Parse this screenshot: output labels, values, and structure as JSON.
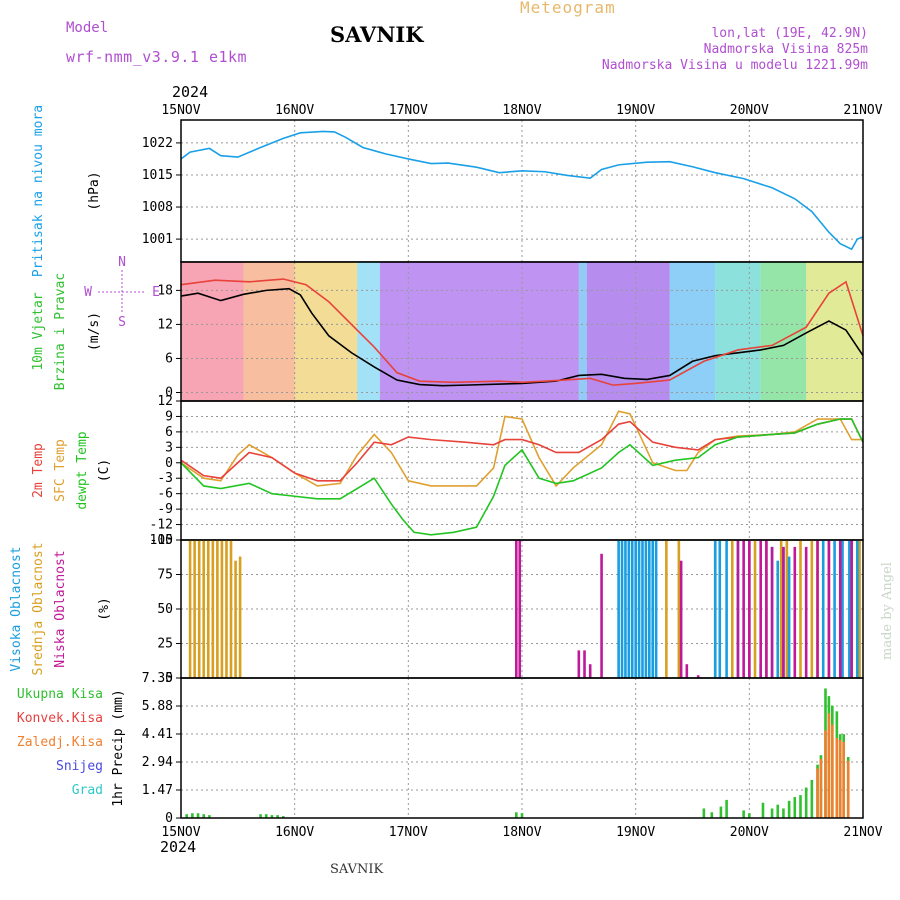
{
  "header": {
    "station": "SAVNIK",
    "subtitle": "Meteogram",
    "model_label": "Model",
    "model_name": "wrf-nmm_v3.9.1 e1km",
    "location": "lon,lat (19E, 42.9N)",
    "elevation": "Nadmorska Visina 825m",
    "model_elevation": "Nadmorska Visina u modelu 1221.99m",
    "year_top": "2024",
    "year_bottom": "2024"
  },
  "footer": "SAVNIK",
  "credit": "made by Angel",
  "colors": {
    "pressure": "#1aa0e8",
    "temp2m": "#e8423a",
    "sfc_temp": "#e0a030",
    "dewpt": "#22c422",
    "low_cloud": "#c0189a",
    "mid_cloud": "#d8a020",
    "high_cloud": "#1a9ee0",
    "total_precip": "#30c030",
    "conv_precip": "#e84040",
    "frozen": "#f08030",
    "snow": "#4a4ae0",
    "grad": "#30c8c8",
    "purple": "#b04fd0"
  },
  "chart_data": [
    {
      "type": "line",
      "panel": "pressure",
      "ylabel_lines": [
        "Pritisak na nivou mora",
        "(hPa)"
      ],
      "x_categories": [
        "15NOV",
        "16NOV",
        "17NOV",
        "18NOV",
        "19NOV",
        "20NOV",
        "21NOV"
      ],
      "xlim_days": [
        0,
        6
      ],
      "ylim": [
        996,
        1027
      ],
      "yticks": [
        1001,
        1008,
        1015,
        1022
      ],
      "ytick_labels": [
        "1001",
        "1008",
        "1015",
        "1022"
      ],
      "series": [
        {
          "color_key": "pressure",
          "x": [
            0,
            0.08,
            0.25,
            0.35,
            0.5,
            0.7,
            0.9,
            1.05,
            1.25,
            1.35,
            1.45,
            1.6,
            1.8,
            2.0,
            2.2,
            2.35,
            2.6,
            2.8,
            3.0,
            3.2,
            3.4,
            3.6,
            3.7,
            3.85,
            4.1,
            4.3,
            4.5,
            4.7,
            4.95,
            5.2,
            5.4,
            5.55,
            5.7,
            5.8,
            5.9,
            5.95,
            6.0
          ],
          "y": [
            1018.5,
            1020,
            1020.8,
            1019.2,
            1018.9,
            1021,
            1023,
            1024.2,
            1024.5,
            1024.4,
            1023.2,
            1021,
            1019.6,
            1018.5,
            1017.5,
            1017.6,
            1016.7,
            1015.5,
            1015.9,
            1015.7,
            1014.9,
            1014.3,
            1016.2,
            1017.2,
            1017.8,
            1017.9,
            1016.8,
            1015.5,
            1014.2,
            1012.2,
            1009.8,
            1007,
            1002.5,
            1000,
            998.8,
            1001,
            1001.5
          ]
        }
      ]
    },
    {
      "type": "line",
      "panel": "wind",
      "ylabel_lines": [
        "10m Vjetar",
        "Brzina i Pravac",
        "(m/s)"
      ],
      "compass": [
        "N",
        "W",
        "E",
        "S"
      ],
      "xlim_days": [
        0,
        6
      ],
      "ylim": [
        -1.5,
        23
      ],
      "yticks": [
        0,
        6,
        12,
        18
      ],
      "ytick_labels": [
        "0",
        "6",
        "12",
        "18"
      ],
      "series": [
        {
          "color_key": "black",
          "x": [
            0,
            0.15,
            0.35,
            0.55,
            0.75,
            0.95,
            1.05,
            1.15,
            1.3,
            1.5,
            1.7,
            1.9,
            2.1,
            2.3,
            2.5,
            3.0,
            3.3,
            3.5,
            3.7,
            3.9,
            4.1,
            4.3,
            4.5,
            4.7,
            4.9,
            5.1,
            5.3,
            5.5,
            5.7,
            5.85,
            6.0
          ],
          "y": [
            17,
            17.5,
            16.2,
            17.3,
            18,
            18.3,
            17.2,
            14,
            10,
            7,
            4.5,
            2.2,
            1.4,
            1.2,
            1.3,
            1.6,
            2,
            3,
            3.2,
            2.5,
            2.3,
            3,
            5.5,
            6.5,
            7,
            7.5,
            8.3,
            10.5,
            12.6,
            11,
            6.5
          ]
        },
        {
          "color_key": "temp2m",
          "x": [
            0,
            0.3,
            0.6,
            0.9,
            1.1,
            1.3,
            1.5,
            1.7,
            1.9,
            2.1,
            2.4,
            2.8,
            3.0,
            3.3,
            3.6,
            3.8,
            4.0,
            4.3,
            4.6,
            4.9,
            5.2,
            5.5,
            5.7,
            5.85,
            6.0
          ],
          "y": [
            19,
            19.8,
            19.5,
            20,
            19,
            16,
            12,
            8,
            3.5,
            2,
            1.8,
            2,
            1.8,
            2.1,
            2.5,
            1.3,
            1.6,
            2.2,
            5.5,
            7.5,
            8.3,
            11.5,
            17.5,
            19.5,
            10
          ]
        }
      ]
    },
    {
      "type": "line",
      "panel": "temperature",
      "ylabel_lines": [
        "2m Temp",
        "SFC Temp",
        "dewpt Temp",
        "(C)"
      ],
      "xlim_days": [
        0,
        6
      ],
      "ylim": [
        -15,
        12
      ],
      "yticks": [
        -15,
        -12,
        -9,
        -6,
        -3,
        0,
        3,
        6,
        9,
        12
      ],
      "ytick_labels": [
        "-15",
        "-12",
        "-9",
        "-6",
        "-3",
        "0",
        "3",
        "6",
        "9",
        "12"
      ],
      "series": [
        {
          "color_key": "sfc_temp",
          "x": [
            0,
            0.2,
            0.35,
            0.5,
            0.6,
            0.8,
            1.0,
            1.2,
            1.4,
            1.55,
            1.7,
            1.85,
            2.0,
            2.2,
            2.4,
            2.6,
            2.75,
            2.85,
            3.0,
            3.15,
            3.3,
            3.45,
            3.7,
            3.85,
            3.95,
            4.15,
            4.35,
            4.45,
            4.55,
            4.7,
            4.9,
            5.2,
            5.4,
            5.6,
            5.8,
            5.9,
            6.0
          ],
          "y": [
            0,
            -3,
            -3.5,
            1.5,
            3.5,
            1,
            -2,
            -4.5,
            -4,
            1.5,
            5.5,
            2,
            -3.5,
            -4.5,
            -4.5,
            -4.5,
            -1,
            9,
            8.5,
            1,
            -4.5,
            -1,
            3.5,
            10,
            9.5,
            0,
            -1.5,
            -1.5,
            2,
            4.5,
            5.2,
            5.5,
            6,
            8.5,
            8.5,
            4.5,
            4.5
          ]
        },
        {
          "color_key": "temp2m",
          "x": [
            0,
            0.2,
            0.35,
            0.5,
            0.6,
            0.8,
            1.0,
            1.2,
            1.4,
            1.55,
            1.7,
            1.85,
            2.0,
            2.2,
            2.5,
            2.75,
            2.85,
            3.0,
            3.15,
            3.3,
            3.5,
            3.7,
            3.85,
            3.95,
            4.15,
            4.35,
            4.55,
            4.7,
            4.9,
            5.2,
            5.4,
            5.6,
            5.8,
            5.9,
            6.0
          ],
          "y": [
            0.5,
            -2.5,
            -3,
            0,
            2,
            1,
            -2,
            -3.5,
            -3.5,
            0,
            4,
            3.5,
            5,
            4.5,
            4,
            3.5,
            4.5,
            4.5,
            3.5,
            2,
            2,
            4.5,
            7.5,
            8,
            4,
            3,
            2.5,
            4.5,
            5,
            5.5,
            5.8,
            7.5,
            8.5,
            8.5,
            4
          ]
        },
        {
          "color_key": "dewpt",
          "x": [
            0,
            0.2,
            0.35,
            0.6,
            0.8,
            1.0,
            1.2,
            1.4,
            1.55,
            1.7,
            1.85,
            1.95,
            2.05,
            2.2,
            2.4,
            2.6,
            2.75,
            2.85,
            3.0,
            3.15,
            3.3,
            3.45,
            3.7,
            3.85,
            3.95,
            4.15,
            4.35,
            4.55,
            4.7,
            4.9,
            5.2,
            5.4,
            5.6,
            5.8,
            5.9,
            6.0
          ],
          "y": [
            0,
            -4.5,
            -5,
            -4,
            -6,
            -6.5,
            -7,
            -7,
            -5,
            -3,
            -8,
            -11,
            -13.5,
            -14,
            -13.5,
            -12.5,
            -6.5,
            -0.5,
            2.5,
            -3,
            -4,
            -3.5,
            -1,
            2,
            3.5,
            -0.5,
            0.5,
            1,
            3.5,
            5,
            5.5,
            5.8,
            7.5,
            8.5,
            8.5,
            4
          ]
        }
      ]
    },
    {
      "type": "bar",
      "panel": "cloudiness",
      "ylabel_lines": [
        "Visoka Oblacnost",
        "Srednja Oblacnost",
        "Niska Oblacnost",
        "(%)"
      ],
      "xlim_days": [
        0,
        6
      ],
      "ylim": [
        0,
        100
      ],
      "yticks": [
        0,
        25,
        50,
        75,
        100
      ],
      "ytick_labels": [
        "0",
        "25",
        "50",
        "75",
        "100"
      ],
      "series": [
        {
          "color_key": "mid_cloud",
          "x": [
            0.08,
            0.12,
            0.16,
            0.2,
            0.24,
            0.28,
            0.32,
            0.36,
            0.4,
            0.44,
            0.48,
            0.52,
            4.27,
            4.38,
            4.7,
            4.85,
            5.0,
            5.05,
            5.15,
            5.28,
            5.33,
            5.45,
            5.55,
            5.6,
            5.7,
            5.8,
            5.9,
            5.97
          ],
          "values": [
            100,
            100,
            100,
            100,
            100,
            100,
            100,
            100,
            100,
            100,
            85,
            88,
            100,
            100,
            100,
            100,
            100,
            100,
            100,
            100,
            100,
            100,
            100,
            100,
            100,
            100,
            100,
            100
          ]
        },
        {
          "color_key": "high_cloud",
          "x": [
            3.85,
            3.88,
            3.91,
            3.94,
            3.97,
            4.0,
            4.03,
            4.06,
            4.09,
            4.12,
            4.15,
            4.18,
            4.7,
            4.74,
            4.8,
            4.9,
            5.1,
            5.2,
            5.25,
            5.3,
            5.35,
            5.65,
            5.75,
            5.82,
            5.88,
            5.95
          ],
          "values": [
            100,
            100,
            100,
            100,
            100,
            100,
            100,
            100,
            100,
            100,
            100,
            100,
            100,
            100,
            100,
            100,
            10,
            95,
            85,
            95,
            88,
            100,
            100,
            100,
            100,
            100
          ]
        },
        {
          "color_key": "low_cloud",
          "x": [
            2.95,
            2.98,
            3.5,
            3.55,
            3.6,
            3.7,
            4.4,
            4.45,
            4.55,
            4.9,
            4.95,
            5.0,
            5.1,
            5.15,
            5.2,
            5.3,
            5.4,
            5.5,
            5.6,
            5.7,
            5.8,
            5.9
          ],
          "values": [
            100,
            100,
            20,
            20,
            10,
            90,
            85,
            10,
            2,
            100,
            100,
            100,
            100,
            100,
            95,
            95,
            95,
            95,
            100,
            100,
            100,
            100
          ]
        }
      ]
    },
    {
      "type": "bar",
      "panel": "precipitation",
      "ylabel_lines": [
        "1hr Precip (mm)"
      ],
      "legend": [
        "Ukupna Kisa",
        "Konvek.Kisa",
        "Zaledj.Kisa",
        "Snijeg",
        "Grad"
      ],
      "xlim_days": [
        0,
        6
      ],
      "ylim": [
        0,
        7.35
      ],
      "yticks": [
        0,
        1.47,
        2.94,
        4.41,
        5.88,
        7.35
      ],
      "ytick_labels": [
        "0",
        "1.47",
        "2.94",
        "4.41",
        "5.88",
        "7.35"
      ],
      "x_categories_bottom": [
        "15NOV",
        "16NOV",
        "17NOV",
        "18NOV",
        "19NOV",
        "20NOV",
        "21NOV"
      ],
      "series": [
        {
          "color_key": "total_precip",
          "x": [
            0.05,
            0.1,
            0.15,
            0.2,
            0.25,
            0.7,
            0.75,
            0.8,
            0.85,
            0.9,
            2.95,
            3.0,
            4.6,
            4.67,
            4.75,
            4.8,
            4.95,
            5.0,
            5.12,
            5.2,
            5.25,
            5.3,
            5.35,
            5.4,
            5.45,
            5.5,
            5.55,
            5.6,
            5.63,
            5.67,
            5.7,
            5.73,
            5.77,
            5.8,
            5.83,
            5.87
          ],
          "values": [
            0.2,
            0.25,
            0.25,
            0.2,
            0.15,
            0.2,
            0.2,
            0.15,
            0.15,
            0.1,
            0.3,
            0.25,
            0.5,
            0.3,
            0.6,
            0.95,
            0.4,
            0.25,
            0.8,
            0.5,
            0.7,
            0.5,
            0.9,
            1.1,
            1.2,
            1.6,
            2.0,
            2.8,
            3.3,
            6.8,
            6.4,
            5.9,
            5.6,
            4.4,
            4.4,
            3.2
          ]
        },
        {
          "color_key": "frozen",
          "x": [
            5.6,
            5.63,
            5.67,
            5.7,
            5.73,
            5.77,
            5.8,
            5.83,
            5.87
          ],
          "values": [
            2.6,
            3.1,
            4.6,
            5.5,
            4.9,
            4.2,
            4.1,
            4.0,
            3.0
          ]
        }
      ]
    }
  ]
}
